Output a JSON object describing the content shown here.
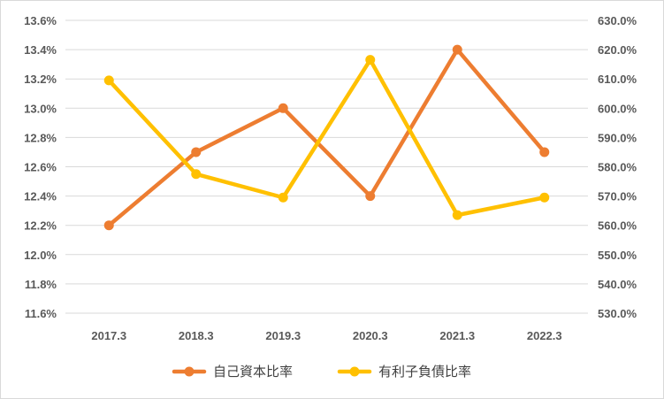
{
  "chart_data": {
    "type": "line",
    "categories": [
      "2017.3",
      "2018.3",
      "2019.3",
      "2020.3",
      "2021.3",
      "2022.3"
    ],
    "series": [
      {
        "name": "自己資本比率",
        "axis": "left",
        "color": "#ED7D31",
        "values": [
          12.2,
          12.7,
          13.0,
          12.4,
          13.4,
          12.7
        ]
      },
      {
        "name": "有利子負債比率",
        "axis": "right",
        "color": "#FFC000",
        "values": [
          609.5,
          577.5,
          569.5,
          616.5,
          563.5,
          569.5
        ]
      }
    ],
    "y_left": {
      "min": 11.6,
      "max": 13.6,
      "step": 0.2,
      "ticks": [
        "11.6%",
        "11.8%",
        "12.0%",
        "12.2%",
        "12.4%",
        "12.6%",
        "12.8%",
        "13.0%",
        "13.2%",
        "13.4%",
        "13.6%"
      ]
    },
    "y_right": {
      "min": 530,
      "max": 630,
      "step": 10,
      "ticks": [
        "530.0%",
        "540.0%",
        "550.0%",
        "560.0%",
        "570.0%",
        "580.0%",
        "590.0%",
        "600.0%",
        "610.0%",
        "620.0%",
        "630.0%"
      ]
    },
    "grid": true,
    "gridline_color": "#d9d9d9",
    "legend": "bottom",
    "title": "",
    "xlabel": "",
    "ylabel": ""
  }
}
